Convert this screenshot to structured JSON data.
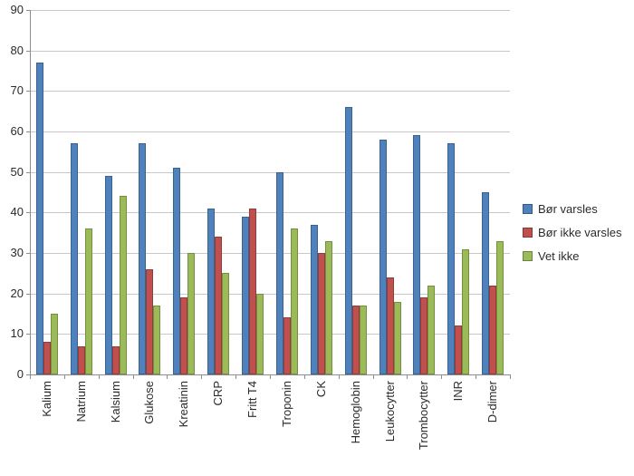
{
  "chart_data": {
    "type": "bar",
    "title": "",
    "xlabel": "",
    "ylabel": "",
    "ylim": [
      0,
      90
    ],
    "yticks": [
      0,
      10,
      20,
      30,
      40,
      50,
      60,
      70,
      80,
      90
    ],
    "grid": true,
    "legend_position": "right",
    "categories": [
      "Kalium",
      "Natrium",
      "Kalsium",
      "Glukose",
      "Kreatinin",
      "CRP",
      "Fritt T4",
      "Troponin",
      "CK",
      "Hemoglobin",
      "Leukocytter",
      "Trombocytter",
      "INR",
      "D-dimer"
    ],
    "series": [
      {
        "name": "Bør varsles",
        "color": "#4F81BD",
        "border_color": "#3A628F",
        "values": [
          77,
          57,
          49,
          57,
          51,
          41,
          39,
          50,
          37,
          66,
          58,
          59,
          57,
          45
        ]
      },
      {
        "name": "Bør ikke varsles",
        "color": "#C0504D",
        "border_color": "#923C3A",
        "values": [
          8,
          7,
          7,
          26,
          19,
          34,
          41,
          14,
          30,
          17,
          24,
          19,
          12,
          22
        ]
      },
      {
        "name": "Vet ikke",
        "color": "#9BBB59",
        "border_color": "#758E42",
        "values": [
          15,
          36,
          44,
          17,
          30,
          25,
          20,
          36,
          33,
          17,
          18,
          22,
          31,
          33
        ]
      }
    ]
  },
  "colors": {
    "gridline": "#c8c8c8",
    "axis": "#8c8c8c",
    "text": "#2b2b2b",
    "background": "#ffffff"
  }
}
